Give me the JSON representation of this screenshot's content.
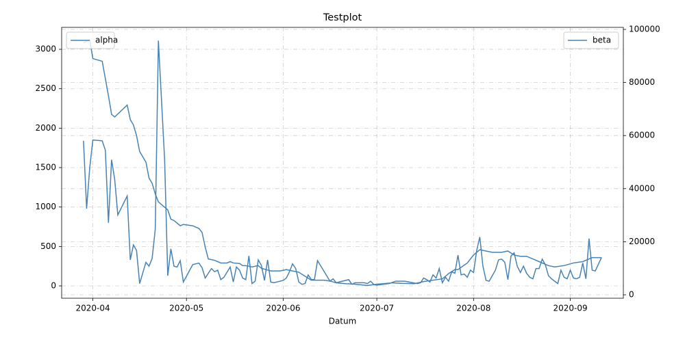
{
  "chart_data": {
    "type": "line",
    "title": "Testplot",
    "xlabel": "Datum",
    "xlim": [
      "2020-03-22",
      "2020-09-18"
    ],
    "xticks": [
      {
        "value": "2020-04-01",
        "label": "2020-04"
      },
      {
        "value": "2020-05-01",
        "label": "2020-05"
      },
      {
        "value": "2020-06-01",
        "label": "2020-06"
      },
      {
        "value": "2020-07-01",
        "label": "2020-07"
      },
      {
        "value": "2020-08-01",
        "label": "2020-08"
      },
      {
        "value": "2020-09-01",
        "label": "2020-09"
      }
    ],
    "ylim": [
      -156,
      3278
    ],
    "yticks": [
      0,
      500,
      1000,
      1500,
      2000,
      2500,
      3000
    ],
    "y2lim": [
      -1289,
      100773
    ],
    "y2ticks": [
      0,
      20000,
      40000,
      60000,
      80000,
      100000
    ],
    "grid": true,
    "legend_loc": "upper left",
    "legend2_loc": "upper right",
    "series": [
      {
        "name": "alpha",
        "color": "#4682b4",
        "axis": "y",
        "x": [
          "2020-03-29",
          "2020-03-30",
          "2020-03-31",
          "2020-04-01",
          "2020-04-04",
          "2020-04-05",
          "2020-04-06",
          "2020-04-07",
          "2020-04-08",
          "2020-04-09",
          "2020-04-12",
          "2020-04-13",
          "2020-04-14",
          "2020-04-15",
          "2020-04-16",
          "2020-04-18",
          "2020-04-19",
          "2020-04-20",
          "2020-04-21",
          "2020-04-22",
          "2020-04-24",
          "2020-04-25",
          "2020-04-26",
          "2020-04-27",
          "2020-04-28",
          "2020-04-29",
          "2020-04-30",
          "2020-05-03",
          "2020-05-05",
          "2020-05-06",
          "2020-05-07",
          "2020-05-09",
          "2020-05-10",
          "2020-05-11",
          "2020-05-12",
          "2020-05-13",
          "2020-05-15",
          "2020-05-16",
          "2020-05-17",
          "2020-05-18",
          "2020-05-19",
          "2020-05-20",
          "2020-05-21",
          "2020-05-22",
          "2020-05-23",
          "2020-05-24",
          "2020-05-25",
          "2020-05-26",
          "2020-05-27",
          "2020-05-28",
          "2020-05-29",
          "2020-06-01",
          "2020-06-02",
          "2020-06-03",
          "2020-06-04",
          "2020-06-05",
          "2020-06-06",
          "2020-06-07",
          "2020-06-08",
          "2020-06-09",
          "2020-06-10",
          "2020-06-11",
          "2020-06-12",
          "2020-06-16",
          "2020-06-17",
          "2020-06-18",
          "2020-06-22",
          "2020-06-23",
          "2020-06-24",
          "2020-06-27",
          "2020-06-28",
          "2020-06-29",
          "2020-06-30",
          "2020-07-01",
          "2020-07-05",
          "2020-07-07",
          "2020-07-10",
          "2020-07-14",
          "2020-07-15",
          "2020-07-16",
          "2020-07-17",
          "2020-07-18",
          "2020-07-19",
          "2020-07-20",
          "2020-07-21",
          "2020-07-22",
          "2020-07-23",
          "2020-07-24",
          "2020-07-25",
          "2020-07-26",
          "2020-07-27",
          "2020-07-28",
          "2020-07-29",
          "2020-07-30",
          "2020-07-31",
          "2020-08-01",
          "2020-08-02",
          "2020-08-03",
          "2020-08-04",
          "2020-08-05",
          "2020-08-06",
          "2020-08-08",
          "2020-08-09",
          "2020-08-10",
          "2020-08-11",
          "2020-08-12",
          "2020-08-13",
          "2020-08-14",
          "2020-08-15",
          "2020-08-16",
          "2020-08-17",
          "2020-08-18",
          "2020-08-19",
          "2020-08-20",
          "2020-08-21",
          "2020-08-22",
          "2020-08-23",
          "2020-08-24",
          "2020-08-25",
          "2020-08-26",
          "2020-08-28",
          "2020-08-29",
          "2020-08-30",
          "2020-08-31",
          "2020-09-01",
          "2020-09-02",
          "2020-09-03",
          "2020-09-04",
          "2020-09-05",
          "2020-09-06",
          "2020-09-07",
          "2020-09-08",
          "2020-09-09",
          "2020-09-11"
        ],
        "values": [
          1840,
          980,
          1500,
          1850,
          1840,
          1720,
          800,
          1600,
          1350,
          900,
          1140,
          330,
          520,
          450,
          30,
          300,
          250,
          350,
          720,
          3110,
          1600,
          130,
          470,
          250,
          240,
          320,
          50,
          270,
          290,
          230,
          100,
          220,
          180,
          200,
          80,
          110,
          240,
          50,
          240,
          200,
          100,
          80,
          380,
          30,
          60,
          330,
          260,
          70,
          330,
          50,
          40,
          70,
          100,
          180,
          280,
          220,
          50,
          20,
          30,
          140,
          80,
          80,
          320,
          60,
          90,
          40,
          80,
          20,
          40,
          40,
          30,
          60,
          20,
          10,
          30,
          60,
          60,
          30,
          40,
          100,
          80,
          50,
          140,
          100,
          220,
          40,
          110,
          60,
          180,
          160,
          390,
          140,
          150,
          110,
          200,
          170,
          450,
          620,
          250,
          70,
          60,
          200,
          330,
          340,
          300,
          80,
          380,
          420,
          250,
          170,
          250,
          160,
          110,
          90,
          220,
          220,
          340,
          270,
          130,
          90,
          30,
          200,
          110,
          90,
          200,
          100,
          90,
          110,
          290,
          90,
          600,
          200,
          190,
          360
        ]
      },
      {
        "name": "beta",
        "color": "#4682b4",
        "axis": "y2",
        "x": [
          "2020-03-29",
          "2020-03-31",
          "2020-04-01",
          "2020-04-04",
          "2020-04-06",
          "2020-04-07",
          "2020-04-08",
          "2020-04-12",
          "2020-04-13",
          "2020-04-14",
          "2020-04-15",
          "2020-04-16",
          "2020-04-18",
          "2020-04-19",
          "2020-04-20",
          "2020-04-21",
          "2020-04-22",
          "2020-04-24",
          "2020-04-25",
          "2020-04-26",
          "2020-04-27",
          "2020-04-29",
          "2020-04-30",
          "2020-05-03",
          "2020-05-05",
          "2020-05-06",
          "2020-05-07",
          "2020-05-08",
          "2020-05-10",
          "2020-05-12",
          "2020-05-14",
          "2020-05-15",
          "2020-05-16",
          "2020-05-18",
          "2020-05-19",
          "2020-05-20",
          "2020-05-22",
          "2020-05-24",
          "2020-05-25",
          "2020-05-28",
          "2020-05-31",
          "2020-06-02",
          "2020-06-04",
          "2020-06-06",
          "2020-06-08",
          "2020-06-10",
          "2020-06-14",
          "2020-06-16",
          "2020-06-18",
          "2020-06-21",
          "2020-06-24",
          "2020-06-28",
          "2020-07-01",
          "2020-07-03",
          "2020-07-06",
          "2020-07-09",
          "2020-07-13",
          "2020-07-16",
          "2020-07-19",
          "2020-07-22",
          "2020-07-24",
          "2020-07-26",
          "2020-07-27",
          "2020-07-30",
          "2020-08-01",
          "2020-08-02",
          "2020-08-03",
          "2020-08-05",
          "2020-08-07",
          "2020-08-10",
          "2020-08-12",
          "2020-08-14",
          "2020-08-16",
          "2020-08-18",
          "2020-08-20",
          "2020-08-22",
          "2020-08-25",
          "2020-08-27",
          "2020-08-30",
          "2020-09-02",
          "2020-09-05",
          "2020-09-07",
          "2020-09-08",
          "2020-09-11"
        ],
        "values": [
          95000,
          96000,
          89000,
          88000,
          75000,
          68000,
          67000,
          71500,
          66000,
          64000,
          60000,
          54000,
          50000,
          44000,
          42000,
          38000,
          35000,
          33000,
          32000,
          28500,
          28000,
          26000,
          26500,
          26000,
          25000,
          23500,
          18000,
          13500,
          13000,
          12000,
          12000,
          12500,
          12000,
          11800,
          11000,
          11000,
          10500,
          11000,
          10000,
          9000,
          9000,
          9500,
          9000,
          8500,
          7000,
          5500,
          5500,
          5200,
          4500,
          4200,
          4000,
          3500,
          4000,
          4200,
          4500,
          4300,
          4200,
          5000,
          5500,
          6000,
          8000,
          9500,
          9500,
          12000,
          15000,
          16000,
          17000,
          16500,
          16000,
          16000,
          16500,
          15000,
          14500,
          14500,
          13500,
          12500,
          11000,
          10500,
          11000,
          12000,
          12500,
          13500,
          14000,
          14000
        ]
      }
    ]
  }
}
